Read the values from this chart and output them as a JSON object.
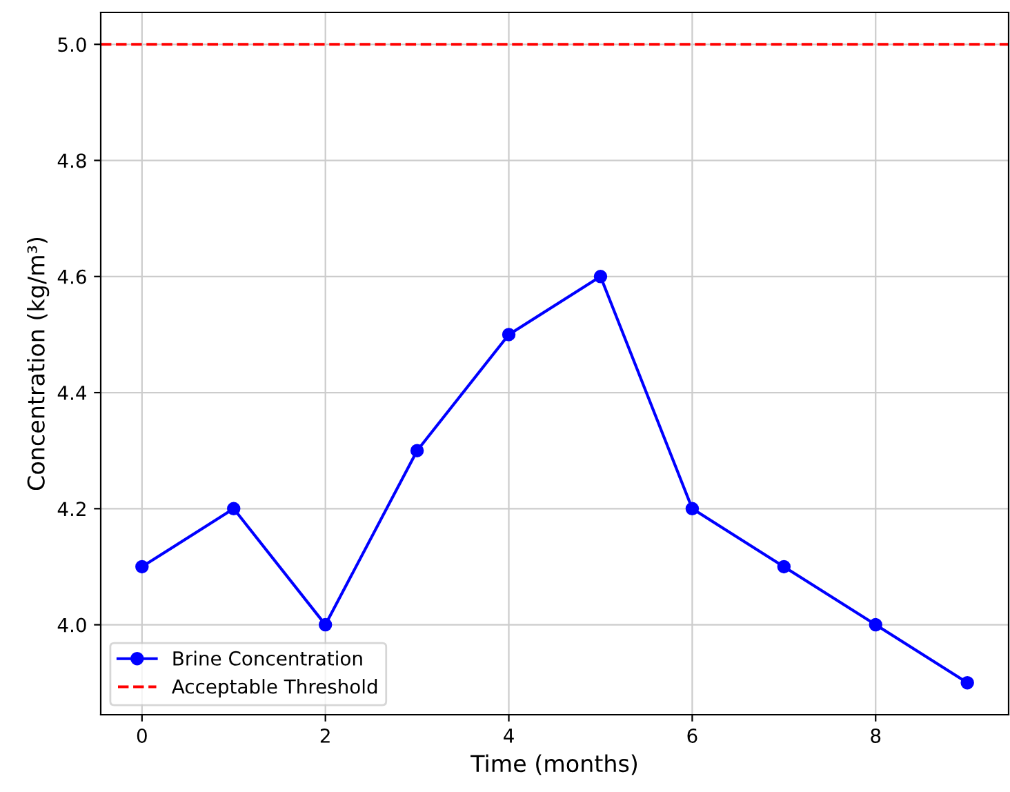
{
  "chart_data": {
    "type": "line",
    "xlabel": "Time (months)",
    "ylabel": "Concentration (kg/m³)",
    "x": [
      0,
      1,
      2,
      3,
      4,
      5,
      6,
      7,
      8,
      9
    ],
    "series": [
      {
        "name": "Brine Concentration",
        "color": "#0000ff",
        "values": [
          4.1,
          4.2,
          4.0,
          4.3,
          4.5,
          4.6,
          4.2,
          4.1,
          4.0,
          3.9
        ]
      }
    ],
    "ref_lines": [
      {
        "axis": "y",
        "value": 5.0,
        "label": "Acceptable Threshold",
        "color": "#ff0000",
        "line_style": "dashed"
      }
    ],
    "xlim": [
      -0.45,
      9.45
    ],
    "ylim": [
      3.845,
      5.055
    ],
    "xticks": [
      0,
      2,
      4,
      6,
      8
    ],
    "yticks": [
      {
        "value": 4.0,
        "label": "4.0"
      },
      {
        "value": 4.2,
        "label": "4.2"
      },
      {
        "value": 4.4,
        "label": "4.4"
      },
      {
        "value": 4.6,
        "label": "4.6"
      },
      {
        "value": 4.8,
        "label": "4.8"
      },
      {
        "value": 5.0,
        "label": "5.0"
      }
    ],
    "grid": true,
    "legend": "lower left",
    "marker": "circle",
    "line_style": "solid"
  }
}
